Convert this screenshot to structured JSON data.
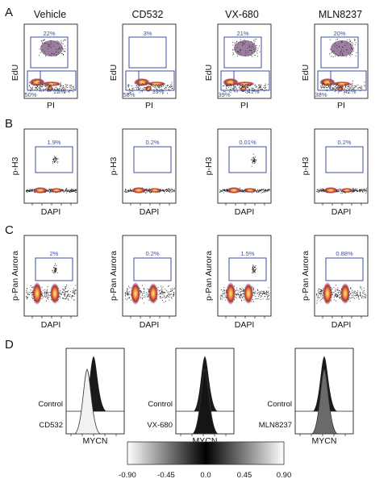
{
  "panels": {
    "A": {
      "letter": "A",
      "columns": [
        "Vehicle",
        "CD532",
        "VX-680",
        "MLN8237"
      ],
      "ylabel": "EdU",
      "xlabel": "PI",
      "gates": [
        {
          "top": "22%",
          "bl": "50%",
          "br": "28%"
        },
        {
          "top": "3%",
          "bl": "58%",
          "br": "39%"
        },
        {
          "top": "21%",
          "bl": "39%",
          "br": "41%"
        },
        {
          "top": "20%",
          "bl": "38%",
          "br": "42%"
        }
      ]
    },
    "B": {
      "letter": "B",
      "ylabel": "p-H3",
      "xlabel": "DAPI",
      "gates": [
        "1.9%",
        "0.2%",
        "0.01%",
        "0.2%"
      ]
    },
    "C": {
      "letter": "C",
      "ylabel": "p-Pan Aurora",
      "xlabel": "DAPI",
      "gates": [
        "2%",
        "0.2%",
        "1.5%",
        "0.88%"
      ]
    },
    "D": {
      "letter": "D",
      "xlabel": "MYCN",
      "control_label": "Control",
      "samples": [
        "CD532",
        "VX-680",
        "MLN8237"
      ],
      "colorbar": {
        "ticks": [
          "-0.90",
          "-0.45",
          "0.0",
          "0.45",
          "0.90"
        ],
        "colors": [
          "#ffffff",
          "#000000",
          "#ffffff"
        ]
      }
    }
  },
  "colors": {
    "gate": "#3b4fa0",
    "dot": "#111111",
    "density_hot": "#f7d56b",
    "density_mid": "#e0582a",
    "density_low": "#6a1f5c"
  }
}
